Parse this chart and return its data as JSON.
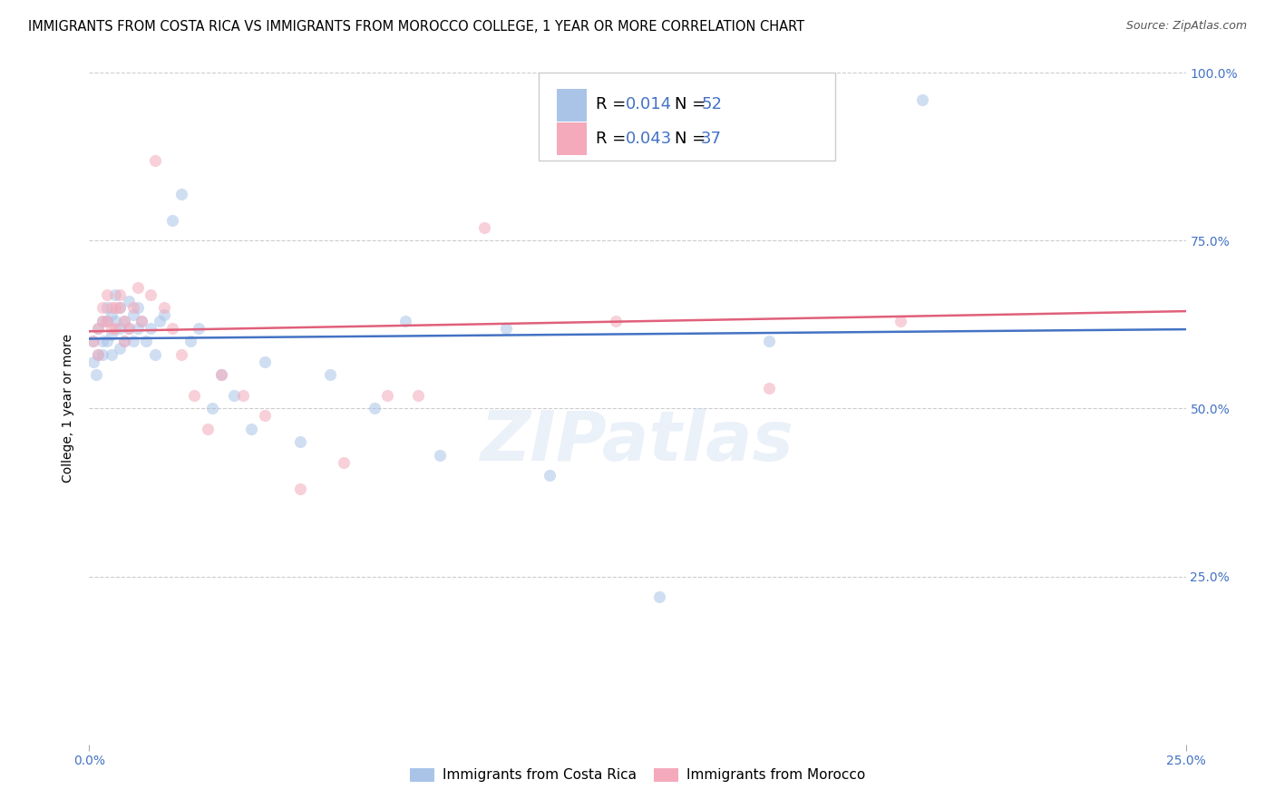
{
  "title": "IMMIGRANTS FROM COSTA RICA VS IMMIGRANTS FROM MOROCCO COLLEGE, 1 YEAR OR MORE CORRELATION CHART",
  "source": "Source: ZipAtlas.com",
  "ylabel": "College, 1 year or more",
  "x_min": 0.0,
  "x_max": 0.25,
  "y_min": 0.0,
  "y_max": 1.0,
  "watermark": "ZIPatlas",
  "costa_rica_color": "#aac4e8",
  "morocco_color": "#f4aabb",
  "costa_rica_line_color": "#4472c4",
  "morocco_line_color": "#e0607a",
  "legend_text_color": "#4472c4",
  "tick_color": "#4472c4",
  "marker_size": 90,
  "marker_alpha": 0.55,
  "grid_color": "#cccccc",
  "background_color": "#ffffff",
  "title_fontsize": 10.5,
  "source_fontsize": 9,
  "axis_label_fontsize": 10,
  "tick_fontsize": 10,
  "legend_fontsize": 13,
  "watermark_color": "#c8d8ef",
  "watermark_fontsize": 55,
  "watermark_alpha": 0.35,
  "R_costa_rica": 0.014,
  "R_morocco": 0.043,
  "N_costa_rica": 52,
  "N_morocco": 37,
  "bottom_legend": [
    "Immigrants from Costa Rica",
    "Immigrants from Morocco"
  ],
  "costa_rica_x": [
    0.0008,
    0.001,
    0.0015,
    0.002,
    0.002,
    0.003,
    0.003,
    0.003,
    0.004,
    0.004,
    0.004,
    0.005,
    0.005,
    0.005,
    0.006,
    0.006,
    0.007,
    0.007,
    0.007,
    0.008,
    0.008,
    0.009,
    0.009,
    0.01,
    0.01,
    0.011,
    0.011,
    0.012,
    0.013,
    0.014,
    0.015,
    0.016,
    0.017,
    0.019,
    0.021,
    0.023,
    0.025,
    0.028,
    0.03,
    0.033,
    0.037,
    0.04,
    0.048,
    0.055,
    0.065,
    0.072,
    0.08,
    0.095,
    0.105,
    0.13,
    0.155,
    0.19
  ],
  "costa_rica_y": [
    0.6,
    0.57,
    0.55,
    0.62,
    0.58,
    0.63,
    0.6,
    0.58,
    0.65,
    0.63,
    0.6,
    0.64,
    0.61,
    0.58,
    0.67,
    0.63,
    0.65,
    0.62,
    0.59,
    0.63,
    0.6,
    0.66,
    0.62,
    0.64,
    0.6,
    0.65,
    0.62,
    0.63,
    0.6,
    0.62,
    0.58,
    0.63,
    0.64,
    0.78,
    0.82,
    0.6,
    0.62,
    0.5,
    0.55,
    0.52,
    0.47,
    0.57,
    0.45,
    0.55,
    0.5,
    0.63,
    0.43,
    0.62,
    0.4,
    0.22,
    0.6,
    0.96
  ],
  "morocco_x": [
    0.001,
    0.002,
    0.002,
    0.003,
    0.003,
    0.004,
    0.004,
    0.005,
    0.005,
    0.006,
    0.006,
    0.007,
    0.007,
    0.008,
    0.008,
    0.009,
    0.01,
    0.011,
    0.012,
    0.014,
    0.015,
    0.017,
    0.019,
    0.021,
    0.024,
    0.027,
    0.03,
    0.035,
    0.04,
    0.048,
    0.058,
    0.068,
    0.075,
    0.09,
    0.12,
    0.155,
    0.185
  ],
  "morocco_y": [
    0.6,
    0.62,
    0.58,
    0.65,
    0.63,
    0.67,
    0.63,
    0.65,
    0.62,
    0.65,
    0.62,
    0.67,
    0.65,
    0.63,
    0.6,
    0.62,
    0.65,
    0.68,
    0.63,
    0.67,
    0.87,
    0.65,
    0.62,
    0.58,
    0.52,
    0.47,
    0.55,
    0.52,
    0.49,
    0.38,
    0.42,
    0.52,
    0.52,
    0.77,
    0.63,
    0.53,
    0.63
  ]
}
